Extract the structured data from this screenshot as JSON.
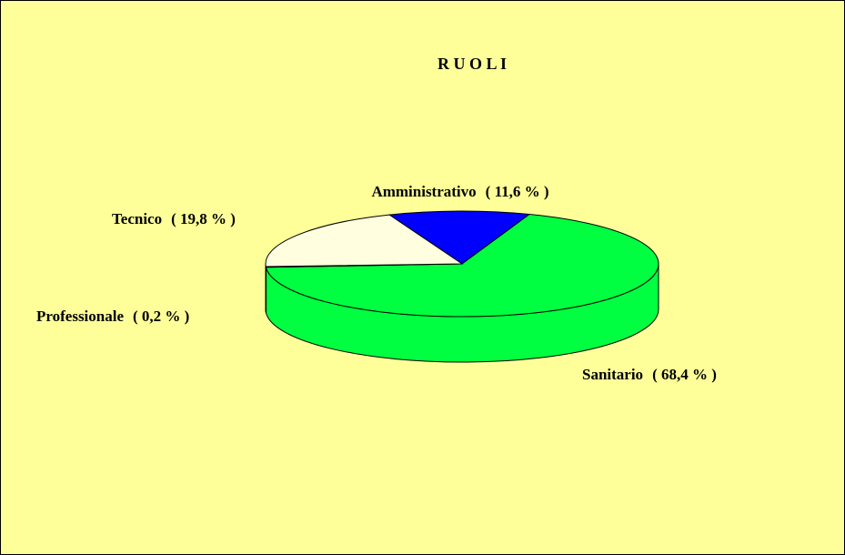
{
  "chart_data": {
    "type": "pie3d",
    "title": "R U O L I",
    "categories": [
      "Amministrativo",
      "Sanitario",
      "Professionale",
      "Tecnico"
    ],
    "values": [
      11.6,
      68.4,
      0.2,
      19.8
    ],
    "value_labels": [
      "( 11,6 % )",
      "( 68,4 % )",
      "( 0,2 % )",
      "( 19,8 % )"
    ],
    "colors": [
      "#0000ff",
      "#00ff40",
      "#9999ff",
      "#ffffe0"
    ]
  }
}
